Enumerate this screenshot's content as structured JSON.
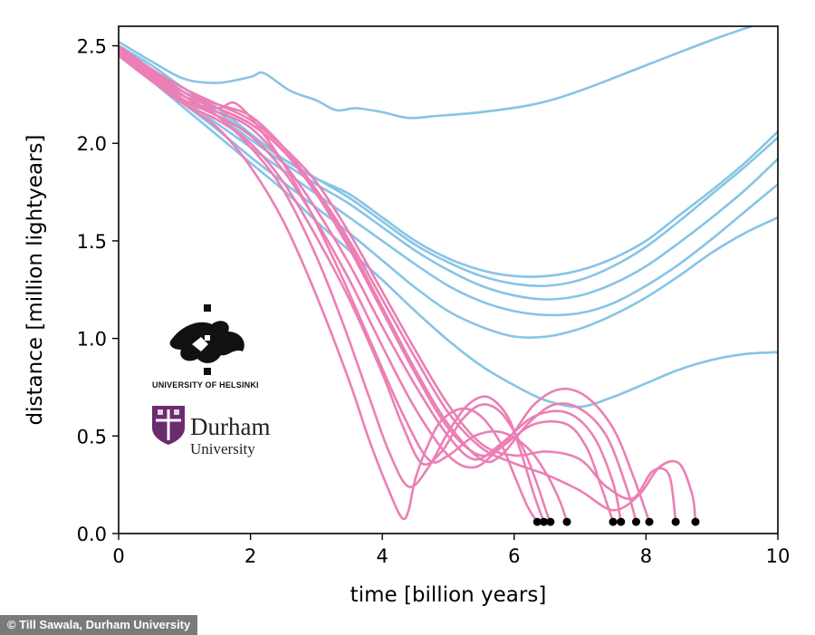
{
  "chart_data": {
    "type": "line",
    "title": "",
    "xlabel": "time [billion years]",
    "ylabel": "distance [million lightyears]",
    "xlim": [
      0,
      10
    ],
    "ylim": [
      0,
      2.6
    ],
    "xticks": [
      "0",
      "2",
      "4",
      "6",
      "8",
      "10"
    ],
    "xtick_values": [
      0,
      2,
      4,
      6,
      8,
      10
    ],
    "yticks": [
      "0.0",
      "0.5",
      "1.0",
      "1.5",
      "2.0",
      "2.5"
    ],
    "ytick_values": [
      0,
      0.5,
      1.0,
      1.5,
      2.0,
      2.5
    ],
    "colors": {
      "non_merging": "#87c4e6",
      "merging": "#ec7fb5",
      "merger_marker": "#000000"
    },
    "series": [
      {
        "name": "blue-1",
        "group": "non_merging",
        "x": [
          0,
          0.5,
          1,
          1.5,
          2,
          2.2,
          2.6,
          3,
          3.3,
          3.6,
          4,
          4.4,
          4.8,
          5.5,
          6.3,
          7,
          8,
          9,
          9.6
        ],
        "y": [
          2.52,
          2.42,
          2.33,
          2.31,
          2.34,
          2.36,
          2.27,
          2.22,
          2.17,
          2.18,
          2.16,
          2.13,
          2.14,
          2.16,
          2.2,
          2.27,
          2.4,
          2.53,
          2.6
        ]
      },
      {
        "name": "blue-2",
        "group": "non_merging",
        "x": [
          0,
          0.5,
          1,
          1.5,
          2,
          2.5,
          3,
          3.5,
          4,
          4.5,
          5,
          5.5,
          6,
          6.5,
          7,
          7.5,
          8,
          8.5,
          9,
          9.5,
          10
        ],
        "y": [
          2.5,
          2.4,
          2.28,
          2.18,
          2.05,
          1.92,
          1.82,
          1.74,
          1.62,
          1.5,
          1.41,
          1.35,
          1.32,
          1.32,
          1.35,
          1.41,
          1.5,
          1.63,
          1.76,
          1.9,
          2.06
        ]
      },
      {
        "name": "blue-3",
        "group": "non_merging",
        "x": [
          0,
          0.5,
          1,
          1.5,
          2,
          2.5,
          3,
          3.5,
          4,
          4.5,
          5,
          5.5,
          6,
          6.5,
          7,
          7.5,
          8,
          8.5,
          9,
          9.5,
          10
        ],
        "y": [
          2.5,
          2.38,
          2.26,
          2.16,
          2.04,
          1.92,
          1.82,
          1.72,
          1.6,
          1.48,
          1.39,
          1.32,
          1.28,
          1.27,
          1.3,
          1.37,
          1.47,
          1.6,
          1.74,
          1.88,
          2.03
        ]
      },
      {
        "name": "blue-4",
        "group": "non_merging",
        "x": [
          0,
          0.5,
          1,
          1.5,
          2,
          2.5,
          3,
          3.5,
          4,
          4.5,
          5,
          5.5,
          6,
          6.5,
          7,
          7.5,
          8,
          8.5,
          9,
          9.5,
          10
        ],
        "y": [
          2.49,
          2.36,
          2.24,
          2.14,
          2.02,
          1.9,
          1.79,
          1.69,
          1.57,
          1.45,
          1.35,
          1.27,
          1.22,
          1.2,
          1.22,
          1.28,
          1.37,
          1.49,
          1.62,
          1.76,
          1.92
        ]
      },
      {
        "name": "blue-5",
        "group": "non_merging",
        "x": [
          0,
          0.5,
          1,
          1.5,
          2,
          2.5,
          3,
          3.5,
          4,
          4.5,
          5,
          5.5,
          6,
          6.5,
          7,
          7.5,
          8,
          8.5,
          9,
          9.5,
          10
        ],
        "y": [
          2.48,
          2.35,
          2.22,
          2.1,
          1.98,
          1.86,
          1.74,
          1.62,
          1.5,
          1.38,
          1.27,
          1.19,
          1.14,
          1.12,
          1.13,
          1.18,
          1.27,
          1.38,
          1.51,
          1.65,
          1.79
        ]
      },
      {
        "name": "blue-6",
        "group": "non_merging",
        "x": [
          0,
          0.5,
          1,
          1.5,
          2,
          2.5,
          3,
          3.5,
          4,
          4.5,
          5,
          5.5,
          6,
          6.5,
          7,
          7.5,
          8,
          8.5,
          9,
          9.5,
          10
        ],
        "y": [
          2.47,
          2.33,
          2.2,
          2.07,
          1.93,
          1.8,
          1.67,
          1.54,
          1.4,
          1.26,
          1.14,
          1.06,
          1.01,
          1.01,
          1.05,
          1.12,
          1.21,
          1.32,
          1.44,
          1.54,
          1.62
        ]
      },
      {
        "name": "blue-7",
        "group": "non_merging",
        "x": [
          0,
          0.5,
          1,
          1.5,
          2,
          2.5,
          3,
          3.5,
          4,
          4.5,
          5,
          5.5,
          6,
          6.5,
          7,
          7.5,
          8,
          8.5,
          9,
          9.5,
          10
        ],
        "y": [
          2.46,
          2.32,
          2.18,
          2.04,
          1.9,
          1.76,
          1.6,
          1.45,
          1.3,
          1.14,
          0.99,
          0.86,
          0.76,
          0.68,
          0.65,
          0.7,
          0.77,
          0.84,
          0.89,
          0.92,
          0.93
        ]
      },
      {
        "name": "pink-1",
        "group": "merging",
        "x": [
          0,
          0.5,
          1,
          1.5,
          2,
          2.5,
          3,
          3.5,
          3.8,
          4.1,
          4.3,
          4.4,
          4.5,
          4.7,
          4.9,
          5.2,
          5.5,
          5.8,
          6.0,
          6.2,
          6.35
        ],
        "y": [
          2.48,
          2.33,
          2.2,
          2.08,
          1.88,
          1.6,
          1.22,
          0.78,
          0.48,
          0.22,
          0.08,
          0.12,
          0.28,
          0.46,
          0.58,
          0.64,
          0.6,
          0.46,
          0.3,
          0.14,
          0.06
        ]
      },
      {
        "name": "pink-2",
        "group": "merging",
        "x": [
          0,
          0.5,
          1,
          1.5,
          2,
          2.5,
          3,
          3.4,
          3.8,
          4.1,
          4.4,
          4.7,
          5.0,
          5.3,
          5.6,
          5.9,
          6.1,
          6.3,
          6.45
        ],
        "y": [
          2.5,
          2.36,
          2.24,
          2.14,
          1.98,
          1.76,
          1.42,
          1.08,
          0.7,
          0.42,
          0.24,
          0.34,
          0.52,
          0.66,
          0.7,
          0.6,
          0.42,
          0.2,
          0.06
        ]
      },
      {
        "name": "pink-3",
        "group": "merging",
        "x": [
          0,
          0.5,
          1,
          1.5,
          2,
          2.5,
          3,
          3.5,
          4,
          4.3,
          4.6,
          4.9,
          5.2,
          5.5,
          5.8,
          6.1,
          6.3,
          6.5,
          6.55
        ],
        "y": [
          2.46,
          2.32,
          2.2,
          2.12,
          2.0,
          1.8,
          1.52,
          1.2,
          0.82,
          0.56,
          0.36,
          0.42,
          0.58,
          0.66,
          0.62,
          0.46,
          0.3,
          0.1,
          0.06
        ]
      },
      {
        "name": "pink-4",
        "group": "merging",
        "x": [
          0,
          0.5,
          1,
          1.5,
          1.8,
          2.3,
          2.8,
          3.3,
          3.8,
          4.3,
          4.7,
          5.0,
          5.4,
          5.8,
          6.2,
          6.5,
          6.7,
          6.8
        ],
        "y": [
          2.49,
          2.35,
          2.22,
          2.18,
          2.2,
          2.0,
          1.72,
          1.38,
          1.0,
          0.62,
          0.38,
          0.4,
          0.5,
          0.52,
          0.44,
          0.3,
          0.16,
          0.06
        ]
      },
      {
        "name": "pink-5",
        "group": "merging",
        "x": [
          0,
          0.5,
          1,
          1.5,
          2,
          2.5,
          3,
          3.5,
          4,
          4.5,
          5.0,
          5.4,
          5.8,
          6.3,
          6.8,
          7.1,
          7.3,
          7.5
        ],
        "y": [
          2.47,
          2.34,
          2.22,
          2.14,
          2.04,
          1.86,
          1.6,
          1.3,
          0.96,
          0.64,
          0.4,
          0.34,
          0.44,
          0.56,
          0.56,
          0.44,
          0.26,
          0.06
        ]
      },
      {
        "name": "pink-6",
        "group": "merging",
        "x": [
          0,
          0.5,
          1,
          1.5,
          2,
          2.5,
          3,
          3.5,
          4,
          4.5,
          5,
          5.4,
          5.8,
          6.3,
          6.8,
          7.2,
          7.5,
          7.62
        ],
        "y": [
          2.45,
          2.32,
          2.21,
          2.16,
          2.08,
          1.9,
          1.66,
          1.38,
          1.06,
          0.76,
          0.5,
          0.38,
          0.46,
          0.6,
          0.62,
          0.5,
          0.26,
          0.06
        ]
      },
      {
        "name": "pink-7",
        "group": "merging",
        "x": [
          0,
          0.5,
          1,
          1.5,
          2,
          2.5,
          3,
          3.5,
          4,
          4.5,
          5,
          5.5,
          5.8,
          6.2,
          6.6,
          7.0,
          7.4,
          7.7,
          7.85
        ],
        "y": [
          2.48,
          2.36,
          2.26,
          2.2,
          2.14,
          1.98,
          1.76,
          1.48,
          1.16,
          0.84,
          0.56,
          0.38,
          0.4,
          0.56,
          0.66,
          0.64,
          0.5,
          0.24,
          0.06
        ]
      },
      {
        "name": "pink-8",
        "group": "merging",
        "x": [
          0,
          0.5,
          1,
          1.5,
          2,
          2.5,
          3,
          3.5,
          4,
          4.5,
          5,
          5.5,
          5.9,
          6.3,
          6.7,
          7.1,
          7.5,
          7.8,
          8.05
        ],
        "y": [
          2.47,
          2.34,
          2.24,
          2.18,
          2.1,
          1.96,
          1.74,
          1.46,
          1.14,
          0.82,
          0.54,
          0.4,
          0.48,
          0.66,
          0.74,
          0.7,
          0.54,
          0.3,
          0.06
        ]
      },
      {
        "name": "pink-9",
        "group": "merging",
        "x": [
          0,
          0.5,
          1,
          1.5,
          2,
          2.5,
          3,
          3.5,
          4,
          4.5,
          5,
          5.5,
          6.0,
          6.5,
          7.0,
          7.4,
          7.8,
          8.1,
          8.35,
          8.45
        ],
        "y": [
          2.5,
          2.38,
          2.28,
          2.2,
          2.12,
          1.98,
          1.8,
          1.54,
          1.24,
          0.94,
          0.66,
          0.46,
          0.4,
          0.42,
          0.38,
          0.24,
          0.18,
          0.32,
          0.3,
          0.06
        ]
      },
      {
        "name": "pink-10",
        "group": "merging",
        "x": [
          0,
          0.5,
          1,
          1.5,
          2,
          2.5,
          3,
          3.5,
          4,
          4.5,
          5,
          5.5,
          6.0,
          6.5,
          7.0,
          7.5,
          7.9,
          8.2,
          8.5,
          8.7,
          8.75
        ],
        "y": [
          2.49,
          2.37,
          2.26,
          2.18,
          2.1,
          1.96,
          1.76,
          1.5,
          1.2,
          0.9,
          0.62,
          0.44,
          0.36,
          0.3,
          0.22,
          0.12,
          0.2,
          0.34,
          0.36,
          0.2,
          0.06
        ]
      }
    ],
    "merger_times": [
      6.35,
      6.45,
      6.55,
      6.8,
      7.5,
      7.62,
      7.85,
      8.05,
      8.45,
      8.75
    ],
    "merger_y": 0.06
  },
  "logos": {
    "helsinki_label": "UNIVERSITY OF HELSINKI",
    "durham_name": "Durham",
    "durham_sub": "University"
  },
  "credit": "© Till Sawala, Durham University"
}
